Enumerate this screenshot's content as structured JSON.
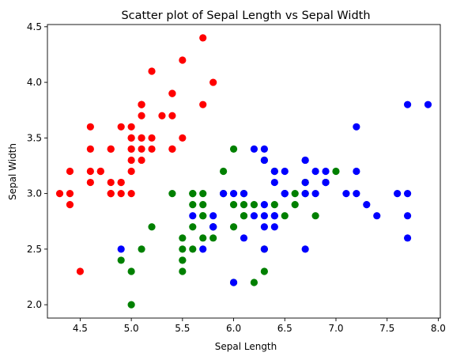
{
  "chart_data": {
    "type": "scatter",
    "title": "Scatter plot of Sepal Length vs Sepal Width",
    "xlabel": "Sepal Length",
    "ylabel": "Sepal Width",
    "xlim": [
      4.18,
      8.02
    ],
    "ylim": [
      1.88,
      4.52
    ],
    "xticks": [
      "4.5",
      "5.0",
      "5.5",
      "6.0",
      "6.5",
      "7.0",
      "7.5",
      "8.0"
    ],
    "yticks": [
      "2.0",
      "2.5",
      "3.0",
      "3.5",
      "4.0",
      "4.5"
    ],
    "grid": false,
    "series": [
      {
        "color": "#ff0000",
        "points": [
          [
            5.1,
            3.5
          ],
          [
            4.9,
            3.0
          ],
          [
            4.7,
            3.2
          ],
          [
            4.6,
            3.1
          ],
          [
            5.0,
            3.6
          ],
          [
            5.4,
            3.9
          ],
          [
            4.6,
            3.4
          ],
          [
            5.0,
            3.4
          ],
          [
            4.4,
            2.9
          ],
          [
            4.9,
            3.1
          ],
          [
            5.4,
            3.7
          ],
          [
            4.8,
            3.4
          ],
          [
            4.8,
            3.0
          ],
          [
            4.3,
            3.0
          ],
          [
            5.8,
            4.0
          ],
          [
            5.7,
            4.4
          ],
          [
            5.4,
            3.9
          ],
          [
            5.1,
            3.5
          ],
          [
            5.7,
            3.8
          ],
          [
            5.1,
            3.8
          ],
          [
            5.4,
            3.4
          ],
          [
            5.1,
            3.7
          ],
          [
            4.6,
            3.6
          ],
          [
            5.1,
            3.3
          ],
          [
            4.8,
            3.4
          ],
          [
            5.0,
            3.0
          ],
          [
            5.0,
            3.4
          ],
          [
            5.2,
            3.5
          ],
          [
            5.2,
            3.4
          ],
          [
            4.7,
            3.2
          ],
          [
            4.8,
            3.1
          ],
          [
            5.4,
            3.4
          ],
          [
            5.2,
            4.1
          ],
          [
            5.5,
            4.2
          ],
          [
            4.9,
            3.1
          ],
          [
            5.0,
            3.2
          ],
          [
            5.5,
            3.5
          ],
          [
            4.9,
            3.6
          ],
          [
            4.4,
            3.0
          ],
          [
            5.1,
            3.4
          ],
          [
            5.0,
            3.5
          ],
          [
            4.5,
            2.3
          ],
          [
            4.4,
            3.2
          ],
          [
            5.0,
            3.5
          ],
          [
            5.1,
            3.8
          ],
          [
            4.8,
            3.0
          ],
          [
            5.1,
            3.8
          ],
          [
            4.6,
            3.2
          ],
          [
            5.3,
            3.7
          ],
          [
            5.0,
            3.3
          ]
        ]
      },
      {
        "color": "#008000",
        "points": [
          [
            7.0,
            3.2
          ],
          [
            6.4,
            3.2
          ],
          [
            6.9,
            3.1
          ],
          [
            5.5,
            2.3
          ],
          [
            6.5,
            2.8
          ],
          [
            5.7,
            2.8
          ],
          [
            6.3,
            3.3
          ],
          [
            4.9,
            2.4
          ],
          [
            6.6,
            2.9
          ],
          [
            5.2,
            2.7
          ],
          [
            5.0,
            2.0
          ],
          [
            5.9,
            3.0
          ],
          [
            6.0,
            2.2
          ],
          [
            6.1,
            2.9
          ],
          [
            5.6,
            2.9
          ],
          [
            6.7,
            3.1
          ],
          [
            5.6,
            3.0
          ],
          [
            5.8,
            2.7
          ],
          [
            6.2,
            2.2
          ],
          [
            5.6,
            2.5
          ],
          [
            5.9,
            3.2
          ],
          [
            6.1,
            2.8
          ],
          [
            6.3,
            2.5
          ],
          [
            6.1,
            2.8
          ],
          [
            6.4,
            2.9
          ],
          [
            6.6,
            3.0
          ],
          [
            6.8,
            2.8
          ],
          [
            6.7,
            3.0
          ],
          [
            6.0,
            2.9
          ],
          [
            5.7,
            2.6
          ],
          [
            5.5,
            2.4
          ],
          [
            5.5,
            2.4
          ],
          [
            5.8,
            2.7
          ],
          [
            6.0,
            2.7
          ],
          [
            5.4,
            3.0
          ],
          [
            6.0,
            3.4
          ],
          [
            6.7,
            3.1
          ],
          [
            6.3,
            2.3
          ],
          [
            5.6,
            3.0
          ],
          [
            5.5,
            2.5
          ],
          [
            5.5,
            2.6
          ],
          [
            6.1,
            3.0
          ],
          [
            5.8,
            2.6
          ],
          [
            5.0,
            2.3
          ],
          [
            5.6,
            2.7
          ],
          [
            5.7,
            3.0
          ],
          [
            5.7,
            2.9
          ],
          [
            6.2,
            2.9
          ],
          [
            5.1,
            2.5
          ],
          [
            5.7,
            2.8
          ]
        ]
      },
      {
        "color": "#0000ff",
        "points": [
          [
            6.3,
            3.3
          ],
          [
            5.8,
            2.7
          ],
          [
            7.1,
            3.0
          ],
          [
            6.3,
            2.9
          ],
          [
            6.5,
            3.0
          ],
          [
            7.6,
            3.0
          ],
          [
            4.9,
            2.5
          ],
          [
            7.3,
            2.9
          ],
          [
            6.7,
            2.5
          ],
          [
            7.2,
            3.6
          ],
          [
            6.5,
            3.2
          ],
          [
            6.4,
            2.7
          ],
          [
            6.8,
            3.0
          ],
          [
            5.7,
            2.5
          ],
          [
            5.8,
            2.8
          ],
          [
            6.4,
            3.2
          ],
          [
            6.5,
            3.0
          ],
          [
            7.7,
            3.8
          ],
          [
            7.7,
            2.6
          ],
          [
            6.0,
            2.2
          ],
          [
            6.9,
            3.2
          ],
          [
            5.6,
            2.8
          ],
          [
            7.7,
            2.8
          ],
          [
            6.3,
            2.7
          ],
          [
            6.7,
            3.3
          ],
          [
            7.2,
            3.2
          ],
          [
            6.2,
            2.8
          ],
          [
            6.1,
            3.0
          ],
          [
            6.4,
            2.8
          ],
          [
            7.2,
            3.0
          ],
          [
            7.4,
            2.8
          ],
          [
            7.9,
            3.8
          ],
          [
            6.4,
            2.8
          ],
          [
            6.3,
            2.8
          ],
          [
            6.1,
            2.6
          ],
          [
            7.7,
            3.0
          ],
          [
            6.3,
            3.4
          ],
          [
            6.4,
            3.1
          ],
          [
            6.0,
            3.0
          ],
          [
            6.9,
            3.1
          ],
          [
            6.7,
            3.1
          ],
          [
            6.9,
            3.1
          ],
          [
            5.8,
            2.7
          ],
          [
            6.8,
            3.2
          ],
          [
            6.7,
            3.3
          ],
          [
            6.7,
            3.0
          ],
          [
            6.3,
            2.5
          ],
          [
            6.5,
            3.0
          ],
          [
            6.2,
            3.4
          ],
          [
            5.9,
            3.0
          ]
        ]
      }
    ]
  }
}
